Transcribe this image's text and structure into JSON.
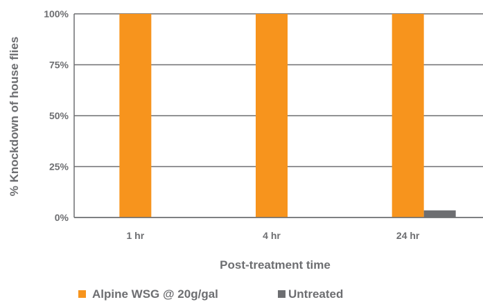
{
  "chart_data": {
    "type": "bar",
    "categories": [
      "1 hr",
      "4 hr",
      "24 hr"
    ],
    "series": [
      {
        "name": "Alpine WSG @ 20g/gal",
        "values": [
          100,
          100,
          100
        ],
        "color": "#f7941d"
      },
      {
        "name": "Untreated",
        "values": [
          0,
          0,
          3.5
        ],
        "color": "#6d6e71"
      }
    ],
    "xlabel": "Post-treatment time",
    "ylabel": "% Knockdown of house flies",
    "ylim": [
      0,
      100
    ],
    "yticks": [
      0,
      25,
      50,
      75,
      100
    ],
    "ytick_labels": [
      "0%",
      "25%",
      "50%",
      "75%",
      "100%"
    ],
    "grid": true,
    "legend_position": "bottom-left"
  }
}
